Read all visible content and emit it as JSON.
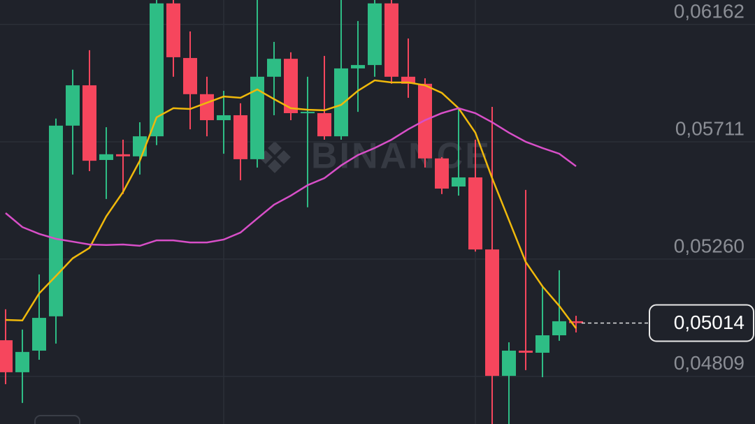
{
  "chart_data": {
    "type": "candlestick",
    "watermark": "BINANCE",
    "up_color": "#2ebd85",
    "down_color": "#f6465d",
    "open": [
      0.04948,
      0.04825,
      0.04908,
      0.0504,
      0.05773,
      0.05928,
      0.05641,
      0.05663,
      0.05655,
      0.05732,
      0.06243,
      0.06033,
      0.05894,
      0.05794,
      0.05813,
      0.05644,
      0.05961,
      0.0603,
      0.05821,
      0.05821,
      0.05732,
      0.05993,
      0.06006,
      0.06243,
      0.05961,
      0.05934,
      0.05647,
      0.05539,
      0.05574,
      0.05297,
      0.04811,
      0.04908,
      0.049,
      0.04967,
      0.05021
    ],
    "high": [
      0.05067,
      0.04989,
      0.05201,
      0.058,
      0.05988,
      0.06063,
      0.05767,
      0.05719,
      0.05786,
      0.06256,
      0.06256,
      0.06135,
      0.05961,
      0.05907,
      0.05859,
      0.06256,
      0.06095,
      0.06055,
      0.05961,
      0.06041,
      0.06256,
      0.06175,
      0.06256,
      0.06256,
      0.06108,
      0.05955,
      0.05652,
      0.0584,
      0.05719,
      0.05845,
      0.0494,
      0.05526,
      0.05155,
      0.05217,
      0.05042
    ],
    "low": [
      0.04779,
      0.04707,
      0.04873,
      0.04935,
      0.05585,
      0.05598,
      0.05491,
      0.0551,
      0.05585,
      0.05698,
      0.05961,
      0.05759,
      0.05732,
      0.05665,
      0.05563,
      0.05612,
      0.05813,
      0.05794,
      0.05459,
      0.05719,
      0.05719,
      0.05826,
      0.05961,
      0.05934,
      0.0588,
      0.05612,
      0.0551,
      0.05504,
      0.05289,
      0.04626,
      0.04626,
      0.04833,
      0.04806,
      0.04946,
      0.04978
    ],
    "close": [
      0.04825,
      0.04903,
      0.05034,
      0.05773,
      0.05928,
      0.05638,
      0.05663,
      0.05655,
      0.05732,
      0.06243,
      0.06036,
      0.05894,
      0.05794,
      0.05813,
      0.05644,
      0.05961,
      0.0603,
      0.05821,
      0.05826,
      0.05732,
      0.05993,
      0.06006,
      0.06243,
      0.05961,
      0.05934,
      0.05647,
      0.05531,
      0.05574,
      0.05297,
      0.04811,
      0.04908,
      0.049,
      0.04967,
      0.05021,
      0.05014
    ],
    "moving_averages": [
      {
        "color": "#f0b90b",
        "values": [
          0.05026,
          0.05024,
          0.05128,
          0.05195,
          0.05263,
          0.05303,
          0.05424,
          0.05518,
          0.05638,
          0.05805,
          0.0584,
          0.05837,
          0.05861,
          0.05885,
          0.0588,
          0.05912,
          0.05875,
          0.0584,
          0.05834,
          0.05832,
          0.05853,
          0.05907,
          0.05947,
          0.05939,
          0.05939,
          0.05928,
          0.05899,
          0.0584,
          0.05746,
          0.05571,
          0.0541,
          0.05249,
          0.05155,
          0.0508,
          0.04994
        ]
      },
      {
        "color": "#d84fc8",
        "values": [
          0.05437,
          0.05383,
          0.05357,
          0.05338,
          0.05327,
          0.05316,
          0.05314,
          0.05316,
          0.05311,
          0.05332,
          0.05332,
          0.05324,
          0.05324,
          0.05335,
          0.05362,
          0.05416,
          0.05469,
          0.05504,
          0.05544,
          0.05571,
          0.0562,
          0.0566,
          0.05687,
          0.05719,
          0.05759,
          0.05794,
          0.05821,
          0.0584,
          0.05821,
          0.05786,
          0.05746,
          0.05711,
          0.05687,
          0.05665,
          0.05617
        ]
      }
    ],
    "ylim": [
      0.04626,
      0.06256
    ],
    "yticks": [
      {
        "value": 0.06162,
        "label": "0,06162"
      },
      {
        "value": 0.05711,
        "label": "0,05711"
      },
      {
        "value": 0.0526,
        "label": "0,05260"
      },
      {
        "value": 0.04809,
        "label": "0,04809"
      }
    ],
    "grid": true,
    "last_price": {
      "value": 0.05014,
      "label": "0,05014"
    }
  }
}
